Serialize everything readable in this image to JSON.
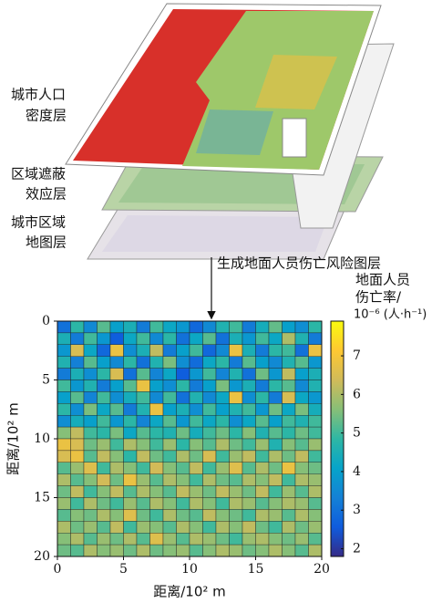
{
  "diagram": {
    "layers": [
      [
        "城市人口",
        "密度层"
      ],
      [
        "区域遮蔽",
        "效应层"
      ],
      [
        "城市区域",
        "地图层"
      ]
    ],
    "arrow_label": "生成地面人员伤亡风险图层"
  },
  "chart_data": {
    "type": "heatmap",
    "xlabel": "距离/10² m",
    "ylabel": "距离/10² m",
    "colorbar_label": [
      "地面人员",
      "伤亡率/",
      "10⁻⁶ (人·h⁻¹)"
    ],
    "xlim": [
      0,
      20
    ],
    "ylim": [
      20,
      0
    ],
    "xticks": [
      0,
      5,
      10,
      15,
      20
    ],
    "yticks": [
      0,
      5,
      10,
      15,
      20
    ],
    "zlim": [
      1.8,
      7.9
    ],
    "zticks": [
      2,
      3,
      4,
      5,
      6,
      7
    ],
    "colormap": [
      "#352a87",
      "#0f5cdd",
      "#1481d6",
      "#06a4ca",
      "#2eb7a4",
      "#87bf77",
      "#d1bb59",
      "#fec832",
      "#f9fb0e"
    ],
    "values": [
      [
        3.0,
        4.8,
        3.5,
        5.2,
        4.0,
        4.5,
        3.2,
        5.0,
        4.2,
        3.8,
        2.8,
        3.5,
        4.6,
        5.0,
        3.2,
        4.4,
        5.3,
        4.0,
        3.6,
        4.8
      ],
      [
        4.5,
        3.2,
        5.0,
        3.8,
        2.6,
        4.2,
        5.0,
        3.5,
        4.8,
        3.0,
        4.2,
        5.2,
        3.0,
        4.5,
        3.8,
        5.0,
        4.2,
        6.0,
        4.6,
        3.2
      ],
      [
        3.8,
        6.5,
        4.2,
        2.8,
        6.8,
        3.6,
        4.5,
        6.2,
        3.2,
        4.0,
        5.0,
        2.8,
        3.5,
        6.8,
        4.5,
        3.2,
        4.8,
        5.0,
        3.0,
        6.8
      ],
      [
        4.6,
        3.3,
        5.2,
        4.0,
        3.5,
        4.8,
        3.0,
        4.6,
        5.5,
        3.6,
        2.9,
        4.2,
        4.8,
        3.2,
        5.2,
        4.0,
        3.5,
        4.6,
        5.2,
        3.8
      ],
      [
        3.2,
        4.5,
        3.6,
        4.8,
        6.5,
        3.0,
        5.2,
        3.4,
        4.2,
        2.6,
        3.8,
        5.0,
        3.4,
        4.6,
        3.0,
        5.4,
        3.8,
        6.2,
        4.0,
        4.5
      ],
      [
        5.0,
        3.8,
        4.6,
        3.2,
        4.0,
        5.2,
        6.8,
        4.0,
        3.6,
        4.8,
        3.2,
        4.0,
        5.5,
        3.8,
        4.5,
        3.2,
        4.8,
        5.2,
        3.5,
        4.6
      ],
      [
        4.0,
        5.2,
        3.4,
        5.0,
        3.6,
        4.4,
        5.0,
        3.5,
        5.0,
        3.0,
        4.6,
        3.5,
        4.2,
        6.8,
        3.6,
        4.8,
        3.2,
        6.5,
        4.2,
        3.8
      ],
      [
        4.8,
        3.6,
        5.5,
        4.2,
        5.2,
        3.2,
        4.6,
        6.8,
        4.0,
        4.5,
        3.6,
        5.0,
        4.0,
        4.6,
        5.0,
        3.8,
        5.4,
        4.2,
        5.5,
        4.4
      ],
      [
        3.6,
        4.4,
        4.0,
        5.0,
        3.8,
        4.8,
        3.4,
        4.2,
        5.2,
        3.8,
        5.0,
        4.2,
        4.8,
        3.6,
        4.2,
        5.2,
        4.0,
        5.0,
        4.6,
        5.0
      ],
      [
        5.6,
        6.2,
        5.0,
        4.8,
        5.5,
        4.2,
        5.2,
        4.8,
        4.6,
        5.4,
        4.4,
        5.0,
        5.4,
        4.8,
        5.6,
        4.6,
        5.2,
        4.8,
        5.4,
        5.0
      ],
      [
        6.8,
        6.5,
        5.4,
        5.8,
        5.0,
        6.0,
        5.6,
        5.0,
        5.8,
        4.8,
        5.6,
        5.2,
        6.0,
        5.4,
        5.0,
        5.8,
        4.6,
        5.6,
        5.2,
        5.8
      ],
      [
        6.5,
        6.8,
        5.2,
        6.2,
        5.6,
        4.8,
        6.2,
        5.4,
        5.0,
        6.0,
        5.4,
        6.5,
        5.0,
        5.8,
        6.2,
        5.0,
        6.0,
        5.4,
        6.2,
        5.0
      ],
      [
        5.2,
        5.8,
        6.6,
        5.0,
        6.0,
        5.6,
        5.0,
        6.4,
        5.6,
        5.2,
        6.2,
        5.0,
        5.8,
        6.6,
        5.2,
        6.0,
        5.4,
        6.8,
        5.6,
        5.4
      ],
      [
        6.0,
        5.2,
        5.6,
        6.4,
        5.4,
        6.8,
        5.8,
        5.2,
        6.0,
        5.6,
        5.0,
        6.0,
        5.4,
        5.2,
        6.0,
        5.6,
        6.2,
        5.0,
        6.0,
        5.8
      ],
      [
        5.4,
        6.2,
        5.0,
        5.6,
        6.2,
        5.2,
        6.0,
        5.6,
        5.2,
        6.2,
        5.8,
        5.4,
        6.2,
        5.8,
        5.4,
        6.2,
        5.0,
        5.8,
        5.2,
        6.0
      ],
      [
        5.8,
        5.0,
        6.0,
        5.4,
        5.0,
        5.8,
        5.2,
        6.0,
        5.6,
        5.0,
        6.0,
        5.6,
        5.0,
        6.0,
        5.8,
        5.2,
        5.6,
        6.0,
        5.8,
        5.2
      ],
      [
        5.2,
        5.6,
        5.4,
        6.0,
        5.6,
        6.6,
        5.4,
        5.0,
        6.0,
        5.4,
        5.2,
        6.2,
        5.6,
        5.4,
        5.0,
        6.0,
        5.8,
        5.2,
        6.0,
        5.6
      ],
      [
        6.0,
        5.4,
        5.8,
        5.2,
        6.2,
        5.0,
        5.8,
        5.6,
        5.2,
        6.0,
        5.6,
        5.0,
        6.0,
        5.6,
        6.2,
        5.4,
        5.0,
        6.0,
        5.4,
        5.8
      ],
      [
        5.6,
        6.0,
        5.2,
        5.8,
        5.4,
        6.0,
        5.2,
        6.6,
        5.8,
        5.2,
        6.0,
        5.8,
        5.4,
        5.0,
        5.8,
        6.0,
        5.6,
        5.4,
        5.8,
        5.2
      ],
      [
        5.4,
        5.2,
        6.0,
        5.6,
        5.8,
        5.4,
        6.0,
        5.4,
        5.6,
        5.8,
        5.2,
        5.6,
        6.0,
        5.8,
        5.4,
        5.6,
        6.0,
        5.6,
        5.2,
        6.0
      ]
    ]
  }
}
